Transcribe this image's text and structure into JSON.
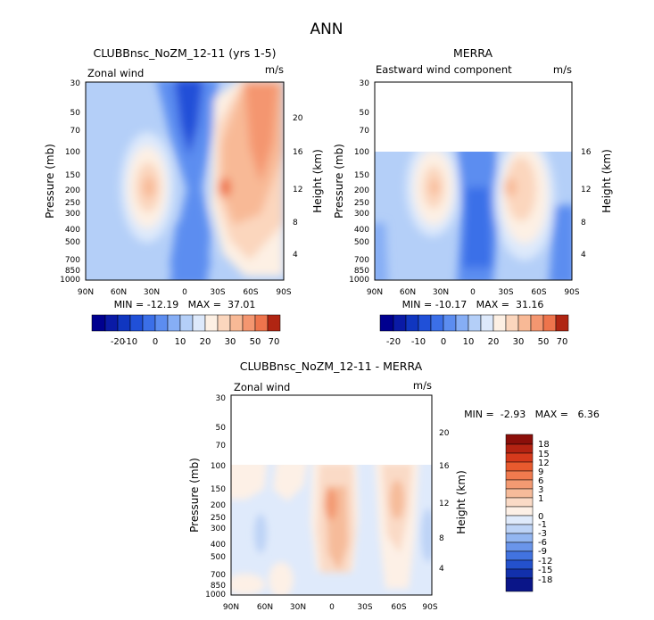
{
  "figure": {
    "title": "ANN"
  },
  "chart_data": [
    {
      "type": "heatmap",
      "title": "CLUBBnsc_NoZM_12-11 (yrs 1-5)",
      "left_label": "Zonal wind",
      "units": "m/s",
      "ylabel": "Pressure (mb)",
      "y2label": "Height (km)",
      "x_ticks": [
        "90N",
        "60N",
        "30N",
        "0",
        "30S",
        "60S",
        "90S"
      ],
      "y_ticks": [
        "30",
        "50",
        "70",
        "100",
        "150",
        "200",
        "250",
        "300",
        "400",
        "500",
        "700",
        "850",
        "1000"
      ],
      "height_ticks": [
        "4",
        "8",
        "12",
        "16",
        "20"
      ],
      "stats": "MIN = -12.19   MAX =  37.01",
      "min": -12.19,
      "max": 37.01,
      "plev_range": [
        30,
        1000
      ],
      "colorbar": {
        "labels": [
          "-20",
          "-10",
          "0",
          "10",
          "20",
          "30",
          "50",
          "70"
        ],
        "levels": [
          -20,
          -15,
          -10,
          -5,
          0,
          5,
          10,
          15,
          20,
          25,
          30,
          40,
          50,
          60,
          70
        ],
        "colors": [
          "#00008f",
          "#0a1aa6",
          "#1036c0",
          "#2050d8",
          "#3b6fe8",
          "#5c8df0",
          "#86aef5",
          "#b4cff8",
          "#dde9fb",
          "#fdf0e4",
          "#fbd6bd",
          "#f8b996",
          "#f49670",
          "#ee744c",
          "#e05330",
          "#b02512"
        ]
      }
    },
    {
      "type": "heatmap",
      "title": "MERRA",
      "left_label": "Eastward wind component",
      "units": "m/s",
      "ylabel": "Pressure (mb)",
      "y2label": "Height (km)",
      "x_ticks": [
        "90N",
        "60N",
        "30N",
        "0",
        "30S",
        "60S",
        "90S"
      ],
      "y_ticks": [
        "30",
        "50",
        "70",
        "100",
        "150",
        "200",
        "250",
        "300",
        "400",
        "500",
        "700",
        "850",
        "1000"
      ],
      "height_ticks": [
        "4",
        "8",
        "12",
        "16"
      ],
      "stats": "MIN = -10.17   MAX =  31.16",
      "min": -10.17,
      "max": 31.16,
      "data_top_mb": 100,
      "colorbar": {
        "labels": [
          "-20",
          "-10",
          "0",
          "10",
          "20",
          "30",
          "50",
          "70"
        ]
      }
    },
    {
      "type": "heatmap",
      "title": "CLUBBnsc_NoZM_12-11 - MERRA",
      "left_label": "Zonal wind",
      "units": "m/s",
      "ylabel": "Pressure (mb)",
      "y2label": "Height (km)",
      "x_ticks": [
        "90N",
        "60N",
        "30N",
        "0",
        "30S",
        "60S",
        "90S"
      ],
      "y_ticks": [
        "30",
        "50",
        "70",
        "100",
        "150",
        "200",
        "250",
        "300",
        "400",
        "500",
        "700",
        "850",
        "1000"
      ],
      "height_ticks": [
        "4",
        "8",
        "12",
        "16",
        "20"
      ],
      "stats": "MIN =  -2.93   MAX =   6.36",
      "min": -2.93,
      "max": 6.36,
      "data_top_mb": 100,
      "colorbar": {
        "labels": [
          "18",
          "15",
          "12",
          "9",
          "6",
          "3",
          "1",
          "0",
          "-1",
          "-3",
          "-6",
          "-9",
          "-12",
          "-15",
          "-18"
        ],
        "colors": [
          "#8b0f0a",
          "#b42312",
          "#d63a1c",
          "#e85a2e",
          "#f07a4e",
          "#f39a72",
          "#f6bb9a",
          "#fadac6",
          "#fdf0e6",
          "#dfeafb",
          "#bdd3f6",
          "#93b6f1",
          "#6a95ea",
          "#4273e0",
          "#2451cc",
          "#1230ab",
          "#0a1588"
        ]
      }
    }
  ]
}
